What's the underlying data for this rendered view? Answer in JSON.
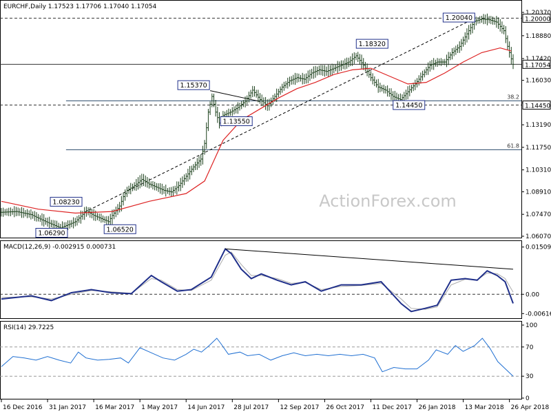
{
  "chart_data": [
    {
      "type": "candlestick",
      "title": "EURCHF,Daily  1.17523 1.17706 1.17040 1.17054",
      "symbol": "EURCHF",
      "timeframe": "Daily",
      "ohlc_label": "1.17523 1.17706 1.17040 1.17054",
      "ylim": [
        1.0607,
        1.2037
      ],
      "y_ticks": [
        "1.20370",
        "1.18880",
        "1.17420",
        "1.16030",
        "1.14590",
        "1.13190",
        "1.11750",
        "1.10310",
        "1.08910",
        "1.07470",
        "1.06070"
      ],
      "y_tick_values": [
        1.2037,
        1.1888,
        1.1742,
        1.1603,
        1.1459,
        1.1319,
        1.1175,
        1.1031,
        1.0891,
        1.0747,
        1.0607
      ],
      "x_ticks": [
        "16 Dec 2016",
        "31 Jan 2017",
        "16 Mar 2017",
        "1 May 2017",
        "14 Jun 2017",
        "28 Jul 2017",
        "12 Sep 2017",
        "26 Oct 2017",
        "11 Dec 2017",
        "26 Jan 2018",
        "13 Mar 2018",
        "26 Apr 2018"
      ],
      "price_path": [
        [
          0,
          1.076
        ],
        [
          8,
          1.0765
        ],
        [
          16,
          1.0745
        ],
        [
          24,
          1.07
        ],
        [
          32,
          1.066
        ],
        [
          40,
          1.07
        ],
        [
          46,
          1.077
        ],
        [
          50,
          1.074
        ],
        [
          54,
          1.072
        ],
        [
          58,
          1.07
        ],
        [
          60,
          1.074
        ],
        [
          64,
          1.08
        ],
        [
          66,
          1.086
        ],
        [
          68,
          1.09
        ],
        [
          72,
          1.093
        ],
        [
          76,
          1.097
        ],
        [
          80,
          1.094
        ],
        [
          84,
          1.092
        ],
        [
          88,
          1.09
        ],
        [
          92,
          1.089
        ],
        [
          96,
          1.093
        ],
        [
          100,
          1.099
        ],
        [
          104,
          1.105
        ],
        [
          108,
          1.11
        ],
        [
          110,
          1.12
        ],
        [
          112,
          1.14
        ],
        [
          114,
          1.15
        ],
        [
          116,
          1.14
        ],
        [
          118,
          1.133
        ],
        [
          120,
          1.138
        ],
        [
          124,
          1.14
        ],
        [
          128,
          1.143
        ],
        [
          132,
          1.147
        ],
        [
          136,
          1.154
        ],
        [
          140,
          1.148
        ],
        [
          144,
          1.144
        ],
        [
          148,
          1.15
        ],
        [
          152,
          1.156
        ],
        [
          156,
          1.16
        ],
        [
          160,
          1.162
        ],
        [
          164,
          1.161
        ],
        [
          168,
          1.165
        ],
        [
          172,
          1.167
        ],
        [
          176,
          1.166
        ],
        [
          180,
          1.168
        ],
        [
          184,
          1.17
        ],
        [
          188,
          1.172
        ],
        [
          192,
          1.176
        ],
        [
          196,
          1.17
        ],
        [
          200,
          1.162
        ],
        [
          204,
          1.156
        ],
        [
          208,
          1.154
        ],
        [
          212,
          1.15
        ],
        [
          216,
          1.148
        ],
        [
          220,
          1.153
        ],
        [
          224,
          1.158
        ],
        [
          228,
          1.164
        ],
        [
          232,
          1.17
        ],
        [
          236,
          1.172
        ],
        [
          240,
          1.172
        ],
        [
          244,
          1.178
        ],
        [
          248,
          1.182
        ],
        [
          252,
          1.19
        ],
        [
          256,
          1.198
        ],
        [
          260,
          1.1995
        ],
        [
          264,
          1.199
        ],
        [
          268,
          1.1975
        ],
        [
          272,
          1.192
        ],
        [
          274,
          1.182
        ],
        [
          276,
          1.174
        ],
        [
          277,
          1.1705
        ]
      ],
      "sma": {
        "name": "SMA",
        "color": "#d22",
        "path": [
          [
            0,
            1.083
          ],
          [
            20,
            1.078
          ],
          [
            40,
            1.0755
          ],
          [
            60,
            1.0765
          ],
          [
            80,
            1.083
          ],
          [
            100,
            1.088
          ],
          [
            110,
            1.096
          ],
          [
            120,
            1.122
          ],
          [
            130,
            1.135
          ],
          [
            140,
            1.142
          ],
          [
            150,
            1.149
          ],
          [
            160,
            1.155
          ],
          [
            170,
            1.159
          ],
          [
            180,
            1.164
          ],
          [
            190,
            1.167
          ],
          [
            200,
            1.168
          ],
          [
            210,
            1.163
          ],
          [
            220,
            1.158
          ],
          [
            230,
            1.159
          ],
          [
            240,
            1.165
          ],
          [
            250,
            1.172
          ],
          [
            260,
            1.178
          ],
          [
            270,
            1.181
          ],
          [
            276,
            1.179
          ]
        ]
      },
      "annotations": [
        {
          "label": "1.20040",
          "x": 257,
          "y": 1.2004,
          "box_dx": -48,
          "box_dy": 0
        },
        {
          "label": "1.18320",
          "x": 210,
          "y": 1.1832,
          "box_dx": -48,
          "box_dy": -1
        },
        {
          "label": "1.15370",
          "x": 113,
          "y": 1.1537,
          "box_dx": -47,
          "box_dy": -8
        },
        {
          "label": "1.13550",
          "x": 119,
          "y": 1.1355,
          "box_dx": -1,
          "box_dy": 3
        },
        {
          "label": "1.14450",
          "x": 218,
          "y": 1.1445,
          "box_dx": -16,
          "box_dy": 0
        },
        {
          "label": "1.08230",
          "x": 44,
          "y": 1.0823,
          "box_dx": -47,
          "box_dy": -1
        },
        {
          "label": "1.06520",
          "x": 56,
          "y": 1.0652,
          "box_dx": -1,
          "box_dy": 0
        },
        {
          "label": "1.06290",
          "x": 19,
          "y": 1.0629,
          "box_dx": -1,
          "box_dy": 0
        }
      ],
      "horizontal_lines": [
        {
          "value": 1.2,
          "style": "dashed",
          "label": "1.20000"
        },
        {
          "value": 1.17054,
          "style": "solid",
          "label": "1.17054"
        },
        {
          "value": 1.1445,
          "style": "dashed",
          "label": "1.14450"
        }
      ],
      "fib_levels": [
        {
          "label": "38.2",
          "value": 1.1472,
          "from_x": 35
        },
        {
          "label": "61.8",
          "value": 1.116,
          "from_x": 35
        }
      ],
      "trendlines": [
        {
          "style": "dashed",
          "points": [
            [
              45,
              1.076
            ],
            [
              257,
              1.2004
            ]
          ]
        },
        {
          "style": "solid",
          "points": [
            [
              113,
              1.1537
            ],
            [
              140,
              1.1468
            ]
          ]
        }
      ],
      "price_label": "1.17054",
      "watermark": "ActionForex.com"
    },
    {
      "type": "line",
      "title": "MACD(12,26,9) -0.002915 0.000731",
      "indicator": "MACD",
      "params": "(12,26,9)",
      "values_label": "-0.002915 0.000731",
      "ylim": [
        -0.0072,
        0.0159
      ],
      "y_ticks": [
        "0.015092",
        "0.00",
        "-0.006163"
      ],
      "y_tick_values": [
        0.015092,
        0.0,
        -0.006163
      ],
      "series": [
        {
          "color": "#1f2f8a",
          "width": 2,
          "path": [
            [
              0,
              -0.0015
            ],
            [
              15,
              -0.0005
            ],
            [
              25,
              -0.002
            ],
            [
              35,
              0.0005
            ],
            [
              45,
              0.0015
            ],
            [
              55,
              0.0005
            ],
            [
              65,
              0.0002
            ],
            [
              75,
              0.006
            ],
            [
              80,
              0.004
            ],
            [
              88,
              0.001
            ],
            [
              95,
              0.0015
            ],
            [
              105,
              0.0055
            ],
            [
              112,
              0.0145
            ],
            [
              115,
              0.013
            ],
            [
              120,
              0.008
            ],
            [
              125,
              0.005
            ],
            [
              130,
              0.0065
            ],
            [
              138,
              0.0045
            ],
            [
              145,
              0.003
            ],
            [
              152,
              0.004
            ],
            [
              160,
              0.001
            ],
            [
              170,
              0.003
            ],
            [
              180,
              0.003
            ],
            [
              190,
              0.004
            ],
            [
              200,
              -0.003
            ],
            [
              205,
              -0.0055
            ],
            [
              212,
              -0.0045
            ],
            [
              218,
              -0.0035
            ],
            [
              225,
              0.0045
            ],
            [
              232,
              0.005
            ],
            [
              238,
              0.0045
            ],
            [
              243,
              0.0075
            ],
            [
              248,
              0.006
            ],
            [
              252,
              0.004
            ],
            [
              256,
              -0.0029
            ]
          ]
        },
        {
          "color": "#aaa",
          "width": 1,
          "path": [
            [
              0,
              -0.001
            ],
            [
              15,
              -0.0008
            ],
            [
              25,
              -0.0015
            ],
            [
              35,
              0.0
            ],
            [
              45,
              0.0012
            ],
            [
              55,
              0.0008
            ],
            [
              65,
              0.0003
            ],
            [
              75,
              0.005
            ],
            [
              80,
              0.0045
            ],
            [
              88,
              0.0015
            ],
            [
              95,
              0.0012
            ],
            [
              105,
              0.0045
            ],
            [
              112,
              0.0125
            ],
            [
              115,
              0.0135
            ],
            [
              120,
              0.0095
            ],
            [
              125,
              0.006
            ],
            [
              130,
              0.006
            ],
            [
              138,
              0.005
            ],
            [
              145,
              0.0035
            ],
            [
              152,
              0.0038
            ],
            [
              160,
              0.0015
            ],
            [
              170,
              0.0025
            ],
            [
              180,
              0.0028
            ],
            [
              190,
              0.0035
            ],
            [
              200,
              -0.0015
            ],
            [
              205,
              -0.0045
            ],
            [
              212,
              -0.0048
            ],
            [
              218,
              -0.004
            ],
            [
              225,
              0.003
            ],
            [
              232,
              0.0048
            ],
            [
              238,
              0.0046
            ],
            [
              243,
              0.0068
            ],
            [
              248,
              0.0066
            ],
            [
              252,
              0.005
            ],
            [
              256,
              0.0007
            ]
          ]
        }
      ],
      "trendline": [
        [
          112,
          0.0145
        ],
        [
          256,
          0.008
        ]
      ]
    },
    {
      "type": "line",
      "title": "RSI(14) 29.7225",
      "indicator": "RSI",
      "params": "(14)",
      "values_label": "29.7225",
      "ylim": [
        0,
        100
      ],
      "y_ticks": [
        "100",
        "70",
        "30",
        "0"
      ],
      "y_tick_values": [
        100,
        70,
        30,
        0
      ],
      "levels": [
        70,
        30
      ],
      "series": [
        {
          "color": "#1f6fd2",
          "width": 1,
          "path": [
            [
              0,
              43
            ],
            [
              6,
              57
            ],
            [
              12,
              55
            ],
            [
              18,
              52
            ],
            [
              24,
              57
            ],
            [
              30,
              52
            ],
            [
              36,
              48
            ],
            [
              40,
              63
            ],
            [
              44,
              55
            ],
            [
              50,
              52
            ],
            [
              56,
              53
            ],
            [
              62,
              55
            ],
            [
              66,
              48
            ],
            [
              72,
              69
            ],
            [
              78,
              62
            ],
            [
              84,
              55
            ],
            [
              90,
              52
            ],
            [
              96,
              60
            ],
            [
              100,
              67
            ],
            [
              104,
              63
            ],
            [
              108,
              72
            ],
            [
              112,
              82
            ],
            [
              114,
              75
            ],
            [
              118,
              60
            ],
            [
              124,
              63
            ],
            [
              128,
              58
            ],
            [
              134,
              60
            ],
            [
              140,
              52
            ],
            [
              146,
              58
            ],
            [
              152,
              62
            ],
            [
              158,
              58
            ],
            [
              164,
              60
            ],
            [
              170,
              58
            ],
            [
              176,
              60
            ],
            [
              182,
              58
            ],
            [
              188,
              60
            ],
            [
              194,
              55
            ],
            [
              198,
              36
            ],
            [
              204,
              42
            ],
            [
              210,
              40
            ],
            [
              216,
              40
            ],
            [
              222,
              52
            ],
            [
              226,
              66
            ],
            [
              232,
              60
            ],
            [
              236,
              72
            ],
            [
              240,
              64
            ],
            [
              246,
              72
            ],
            [
              250,
              82
            ],
            [
              254,
              68
            ],
            [
              258,
              50
            ],
            [
              262,
              40
            ],
            [
              266,
              30
            ]
          ]
        }
      ]
    }
  ]
}
